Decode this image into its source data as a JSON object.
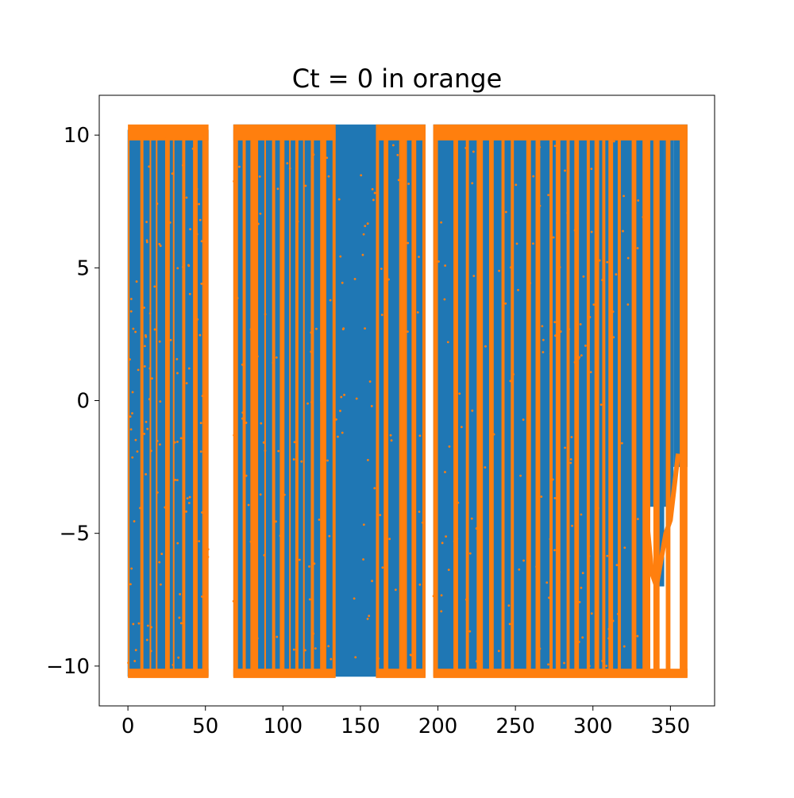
{
  "chart_data": {
    "type": "scatter",
    "title": "Ct = 0 in orange",
    "xlabel": "",
    "ylabel": "",
    "xlim": [
      -18.5,
      378.5
    ],
    "ylim": [
      -11.5,
      11.5
    ],
    "xticks": [
      0,
      50,
      100,
      150,
      200,
      250,
      300,
      350
    ],
    "yticks": [
      -10,
      -5,
      0,
      5,
      10
    ],
    "xtick_labels": [
      "0",
      "50",
      "100",
      "150",
      "200",
      "250",
      "300",
      "350"
    ],
    "ytick_labels": [
      "−10",
      "−5",
      "0",
      "5",
      "10"
    ],
    "grid": false,
    "legend": "none",
    "series": [
      {
        "color": "#1f77b4",
        "blocks": [
          {
            "x": [
              -0.2,
              52
            ],
            "y": [
              -10.4,
              10.2
            ]
          },
          {
            "x": [
              68,
              192
            ],
            "y": [
              -10.4,
              10.4
            ]
          },
          {
            "x": [
              197,
              335
            ],
            "y": [
              -10.4,
              10.4
            ]
          },
          {
            "x": [
              335,
              341
            ],
            "y": [
              -4,
              10.4
            ]
          },
          {
            "x": [
              341,
              346
            ],
            "y": [
              -7,
              10.4
            ]
          },
          {
            "x": [
              346,
              352
            ],
            "y": [
              -4,
              10.4
            ]
          },
          {
            "x": [
              352,
              361
            ],
            "y": [
              -2.5,
              10.4
            ]
          }
        ]
      },
      {
        "color": "#ff7f0e",
        "stripes": [
          [
            0,
            1
          ],
          [
            8,
            10
          ],
          [
            14,
            15
          ],
          [
            18,
            19
          ],
          [
            24,
            27
          ],
          [
            29,
            30
          ],
          [
            35,
            37
          ],
          [
            42,
            45
          ],
          [
            48,
            52
          ],
          [
            68,
            71
          ],
          [
            74,
            76
          ],
          [
            79,
            84
          ],
          [
            88,
            89
          ],
          [
            93,
            95
          ],
          [
            98,
            101
          ],
          [
            104,
            105
          ],
          [
            108,
            110
          ],
          [
            113,
            114
          ],
          [
            118,
            120
          ],
          [
            124,
            128
          ],
          [
            132,
            134
          ],
          [
            160,
            162
          ],
          [
            165,
            168
          ],
          [
            175,
            180
          ],
          [
            183,
            186
          ],
          [
            190,
            192
          ],
          [
            197,
            200
          ],
          [
            210,
            213
          ],
          [
            218,
            220
          ],
          [
            225,
            229
          ],
          [
            233,
            236
          ],
          [
            241,
            243
          ],
          [
            247,
            249
          ],
          [
            257,
            260
          ],
          [
            263,
            266
          ],
          [
            272,
            274
          ],
          [
            276,
            279
          ],
          [
            283,
            285
          ],
          [
            288,
            291
          ],
          [
            296,
            298
          ],
          [
            301,
            304
          ],
          [
            306,
            308
          ],
          [
            310,
            313
          ],
          [
            316,
            318
          ],
          [
            325,
            328
          ],
          [
            332,
            337
          ],
          [
            339,
            343
          ],
          [
            347,
            350
          ],
          [
            356,
            361
          ]
        ],
        "bands_top": [
          [
            0,
            52
          ],
          [
            68,
            134
          ],
          [
            160,
            192
          ],
          [
            197,
            361
          ]
        ],
        "bands_bottom": [
          [
            0,
            52
          ],
          [
            68,
            134
          ],
          [
            160,
            192
          ],
          [
            197,
            361
          ]
        ],
        "curve": [
          [
            334,
            -4
          ],
          [
            338,
            -6.5
          ],
          [
            341,
            -7
          ],
          [
            344,
            -6
          ],
          [
            347,
            -5
          ],
          [
            350,
            -4.5
          ],
          [
            353,
            -3
          ],
          [
            355,
            -2
          ]
        ]
      }
    ]
  }
}
